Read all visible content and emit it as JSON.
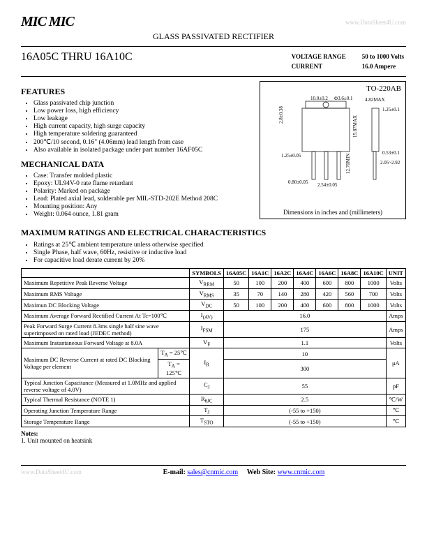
{
  "header": {
    "logo": "MIC MIC",
    "subtitle": "GLASS PASSIVATED RECTIFIER",
    "watermark": "www.DataSheet4U.com"
  },
  "title": {
    "parts": "16A05C THRU 16A10C",
    "voltage_label": "VOLTAGE RANGE",
    "voltage_value": "50 to 1000 Volts",
    "current_label": "CURRENT",
    "current_value": "16.0 Ampere"
  },
  "features": {
    "heading": "FEATURES",
    "items": [
      "Glass passivated chip junction",
      "Low power loss, high efficiency",
      "Low leakage",
      "High current capacity, high surge capacity",
      "High temperature soldering guaranteed",
      "200℃/10 second, 0.16\" (4.06mm) lead length from case",
      "Also available in isolated package under part number 16AF05C"
    ]
  },
  "mechanical": {
    "heading": "MECHANICAL DATA",
    "items": [
      "Case: Transfer molded plastic",
      "Epoxy: UL94V-0 rate flame retardant",
      "Polarity: Marked on package",
      "Lead: Plated axial lead, solderable per MIL-STD-202E Method 208C",
      "Mounting position: Any",
      "Weight: 0.064 ounce, 1.81 gram"
    ]
  },
  "diagram": {
    "package": "TO-220AB",
    "caption": "Dimensions in inches and (millimeters)",
    "dims": {
      "d1": "2.8±0.38",
      "d2": "10.0±0.2",
      "d3": "Φ3.6±0.1",
      "d4": "4.82MAX",
      "d5": "1.25±0.15",
      "d6": "15.87MAX",
      "d7": "1.25±0.05",
      "d8": "2.54±0.05",
      "d9": "0.53±0.15",
      "d10": "0.80±0.05",
      "d11": "12.70MIN",
      "d12": "2.05~2.92"
    }
  },
  "ratings": {
    "heading": "MAXIMUM RATINGS AND ELECTRICAL CHARACTERISTICS",
    "notes_top": [
      "Ratings at 25℃ ambient temperature unless otherwise specified",
      "Single Phase, half wave, 60Hz, resistive or inductive load",
      "For capacitive load derate current by 20%"
    ],
    "columns": [
      "SYMBOLS",
      "16A05C",
      "16A1C",
      "16A2C",
      "16A4C",
      "16A6C",
      "16A8C",
      "16A10C",
      "UNIT"
    ],
    "rows": [
      {
        "param": "Maximum Repetitive Peak Reverse Voltage",
        "sym": "V<sub>RRM</sub>",
        "vals": [
          "50",
          "100",
          "200",
          "400",
          "600",
          "800",
          "1000"
        ],
        "unit": "Volts"
      },
      {
        "param": "Maximum RMS Voltage",
        "sym": "V<sub>RMS</sub>",
        "vals": [
          "35",
          "70",
          "140",
          "280",
          "420",
          "560",
          "700"
        ],
        "unit": "Volts"
      },
      {
        "param": "Maximun DC Blocking Voltage",
        "sym": "V<sub>DC</sub>",
        "vals": [
          "50",
          "100",
          "200",
          "400",
          "600",
          "800",
          "1000"
        ],
        "unit": "Volts"
      },
      {
        "param": "Maximum Average Forward Rectified Current At Tc=100℃",
        "sym": "I<sub>(AV)</sub>",
        "span": "16.0",
        "unit": "Amps"
      },
      {
        "param": "Peak Forward Surge Current 8.3ms single half sine wave superimposed on rated load (JEDEC method)",
        "sym": "I<sub>FSM</sub>",
        "span": "175",
        "unit": "Amps"
      },
      {
        "param": "Maximum Instantaneous Forward Voltage at 8.0A",
        "sym": "V<sub>F</sub>",
        "span": "1.1",
        "unit": "Volts"
      },
      {
        "param": "Maximum DC Reverse Current at rated DC Blocking Voltage per element",
        "sub": [
          {
            "c": "T<sub>A</sub> = 25℃",
            "v": "10"
          },
          {
            "c": "T<sub>A</sub> = 125℃",
            "v": "300"
          }
        ],
        "sym": "I<sub>R</sub>",
        "unit": "μA"
      },
      {
        "param": "Typical Junction Capacitance (Measured at 1.0MHz and applied reverse voltage of 4.0V)",
        "sym": "C<sub>J</sub>",
        "span": "55",
        "unit": "pF"
      },
      {
        "param": "Typical Thermal Resistance (NOTE 1)",
        "sym": "R<sub>θJC</sub>",
        "span": "2.5",
        "unit": "℃/W"
      },
      {
        "param": "Operating Junction Temperature Range",
        "sym": "T<sub>J</sub>",
        "span": "(-55 to +150)",
        "unit": "℃"
      },
      {
        "param": "Storage Temperature Range",
        "sym": "T<sub>STO</sub>",
        "span": "(-55 to +150)",
        "unit": "℃"
      }
    ]
  },
  "notes": {
    "label": "Notes:",
    "n1": "1. Unit mounted on heatsink"
  },
  "footer": {
    "email_label": "E-mail:",
    "email": "sales@cnmic.com",
    "web_label": "Web Site:",
    "web": "www.cnmic.com",
    "watermark": "www.DataSheet4U.com"
  }
}
